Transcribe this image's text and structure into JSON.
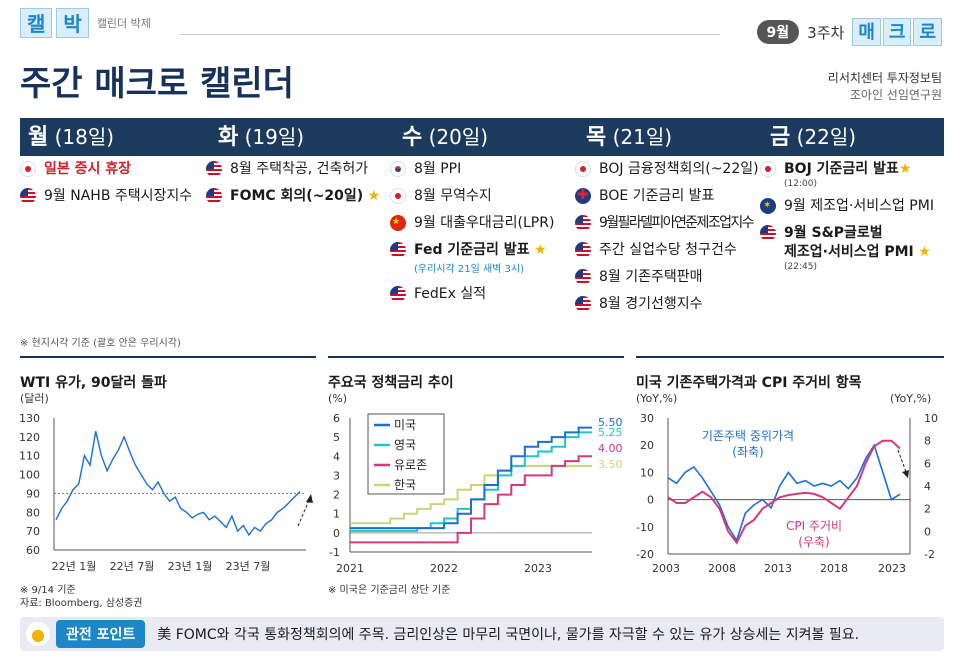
{
  "brand": {
    "chars": [
      "캘",
      "박"
    ],
    "sub": "캘린더 박제"
  },
  "week": {
    "month": "9월",
    "label": "3주차",
    "tag": [
      "매",
      "크",
      "로"
    ]
  },
  "title": "주간 매크로 캘린더",
  "author": {
    "org": "리서치센터 투자정보팀",
    "name": "조아인 선임연구원"
  },
  "days": [
    {
      "day": "월",
      "date": "(18일)"
    },
    {
      "day": "화",
      "date": "(19일)"
    },
    {
      "day": "수",
      "date": "(20일)"
    },
    {
      "day": "목",
      "date": "(21일)"
    },
    {
      "day": "금",
      "date": "(22일)"
    }
  ],
  "events": {
    "mon": [
      {
        "flag": "jp",
        "text": "일본 증시 휴장",
        "style": "red"
      },
      {
        "flag": "us",
        "text": "9월 NAHB 주택시장지수"
      }
    ],
    "tue": [
      {
        "flag": "us",
        "text": "8월 주택착공, 건축허가"
      },
      {
        "flag": "us",
        "text": "FOMC 회의(~20일)",
        "style": "bold",
        "star": "★"
      }
    ],
    "wed": [
      {
        "flag": "kr",
        "text": "8월 PPI"
      },
      {
        "flag": "jp",
        "text": "8월 무역수지"
      },
      {
        "flag": "cn",
        "text": "9월 대출우대금리(LPR)"
      },
      {
        "flag": "us",
        "text": "Fed 기준금리 발표",
        "style": "bold",
        "star": "★",
        "note": "(우리시각 21일 새벽 3시)"
      },
      {
        "flag": "us",
        "text": "FedEx 실적"
      }
    ],
    "thu": [
      {
        "flag": "jp",
        "text": "BOJ 금융정책회의(~22일)"
      },
      {
        "flag": "uk",
        "text": "BOE 기준금리 발표"
      },
      {
        "flag": "us",
        "text": "9월필라델피아연준제조업지수"
      },
      {
        "flag": "us",
        "text": "주간 실업수당 청구건수"
      },
      {
        "flag": "us",
        "text": "8월 기존주택판매"
      },
      {
        "flag": "us",
        "text": "8월 경기선행지수"
      }
    ],
    "fri": [
      {
        "flag": "jp",
        "text": "BOJ 기준금리 발표",
        "style": "bold",
        "star": "★",
        "time": "(12:00)"
      },
      {
        "flag": "eu",
        "text": "9월 제조업·서비스업 PMI"
      },
      {
        "flag": "us",
        "text": "9월 S&P글로벌",
        "text2": "제조업·서비스업 PMI",
        "style": "bold",
        "star": "★",
        "time": "(22:45)"
      }
    ]
  },
  "tz_note": "※ 현지시각 기준 (괄호 안은 우리시각)",
  "colors": {
    "navy": "#1b3a5e",
    "accent": "#1c86c8",
    "red": "#d21e2d",
    "star": "#f2b200"
  },
  "chart_data": [
    {
      "type": "line",
      "title": "WTI 유가, 90달러 돌파",
      "ylabel": "(달러)",
      "ylim": [
        60,
        130
      ],
      "yticks": [
        "130",
        "120",
        "110",
        "100",
        "90",
        "80",
        "70",
        "60"
      ],
      "xticks": [
        "22년 1월",
        "22년 7월",
        "23년 1월",
        "23년 7월"
      ],
      "reference_line": 90,
      "series": [
        {
          "values": [
            76,
            82,
            86,
            92,
            95,
            110,
            105,
            123,
            110,
            102,
            108,
            113,
            120,
            112,
            105,
            100,
            95,
            92,
            96,
            90,
            86,
            88,
            82,
            80,
            77,
            79,
            80,
            76,
            78,
            75,
            72,
            78,
            70,
            73,
            68,
            72,
            70,
            74,
            76,
            80,
            82,
            85,
            88,
            91
          ]
        }
      ],
      "footnote": [
        "※ 9/14 기준",
        "자료: Bloomberg, 삼성증권"
      ]
    },
    {
      "type": "line",
      "title": "주요국 정책금리 추이",
      "ylabel": "(%)",
      "ylim": [
        -1,
        6
      ],
      "yticks": [
        "6",
        "5",
        "4",
        "3",
        "2",
        "1",
        "0",
        "-1"
      ],
      "xticks": [
        "2021",
        "2022",
        "2023"
      ],
      "series": [
        {
          "name": "미국",
          "color": "#1c6fd1",
          "values": [
            0.25,
            0.25,
            0.25,
            0.25,
            0.25,
            0.25,
            0.25,
            0.5,
            1.0,
            1.75,
            2.5,
            3.25,
            4.0,
            4.5,
            4.75,
            5.0,
            5.25,
            5.5,
            5.5
          ],
          "end_label": "5.50"
        },
        {
          "name": "영국",
          "color": "#1ec6c9",
          "values": [
            0.1,
            0.1,
            0.1,
            0.1,
            0.1,
            0.25,
            0.5,
            0.75,
            1.25,
            1.75,
            2.25,
            3.0,
            3.5,
            4.0,
            4.25,
            4.5,
            5.0,
            5.25,
            5.25
          ],
          "end_label": "5.25"
        },
        {
          "name": "유로존",
          "color": "#d4397e",
          "values": [
            -0.5,
            -0.5,
            -0.5,
            -0.5,
            -0.5,
            -0.5,
            -0.5,
            -0.5,
            0.0,
            0.75,
            1.5,
            2.0,
            2.5,
            3.0,
            3.0,
            3.5,
            3.75,
            4.0,
            4.0
          ],
          "end_label": "4.00"
        },
        {
          "name": "한국",
          "color": "#c8d67a",
          "values": [
            0.5,
            0.5,
            0.5,
            0.75,
            1.0,
            1.25,
            1.5,
            1.75,
            2.25,
            2.5,
            3.0,
            3.25,
            3.5,
            3.5,
            3.5,
            3.5,
            3.5,
            3.5,
            3.5
          ],
          "end_label": "3.50"
        }
      ],
      "footnote": [
        "※ 미국은 기준금리 상단 기준"
      ]
    },
    {
      "type": "line",
      "title": "미국 기존주택가격과 CPI 주거비 항목",
      "ylabel_left": "(YoY,%)",
      "ylabel_right": "(YoY,%)",
      "ylim_left": [
        -20,
        30
      ],
      "ylim_right": [
        -2,
        10
      ],
      "yticks_left": [
        "30",
        "20",
        "10",
        "0",
        "-10",
        "-20"
      ],
      "yticks_right": [
        "10",
        "8",
        "6",
        "4",
        "2",
        "0",
        "-2"
      ],
      "xticks": [
        "2003",
        "2008",
        "2013",
        "2018",
        "2023"
      ],
      "series": [
        {
          "name": "기존주택 중위가격",
          "sub": "(좌축)",
          "axis": "left",
          "color": "#1c6fd1",
          "values": [
            8,
            6,
            10,
            12,
            8,
            3,
            -2,
            -10,
            -15,
            -5,
            -2,
            0,
            -3,
            5,
            10,
            6,
            7,
            5,
            6,
            5,
            7,
            4,
            8,
            15,
            20,
            10,
            0,
            2
          ]
        },
        {
          "name": "CPI 주거비",
          "sub": "(우축)",
          "axis": "right",
          "color": "#d4397e",
          "values": [
            3,
            2.5,
            2.5,
            3,
            3.5,
            3,
            2,
            0,
            -1,
            0.5,
            1,
            2,
            2.5,
            3,
            3.2,
            3.3,
            3.4,
            3.3,
            3,
            2.5,
            2,
            3,
            4,
            6,
            7.5,
            8,
            8,
            7.3
          ]
        }
      ]
    }
  ],
  "bottom": {
    "tag": "관전 포인트",
    "text": "美 FOMC와 각국 통화정책회의에 주목. 금리인상은 마무리 국면이나, 물가를 자극할 수 있는 유가 상승세는 지켜볼 필요."
  }
}
